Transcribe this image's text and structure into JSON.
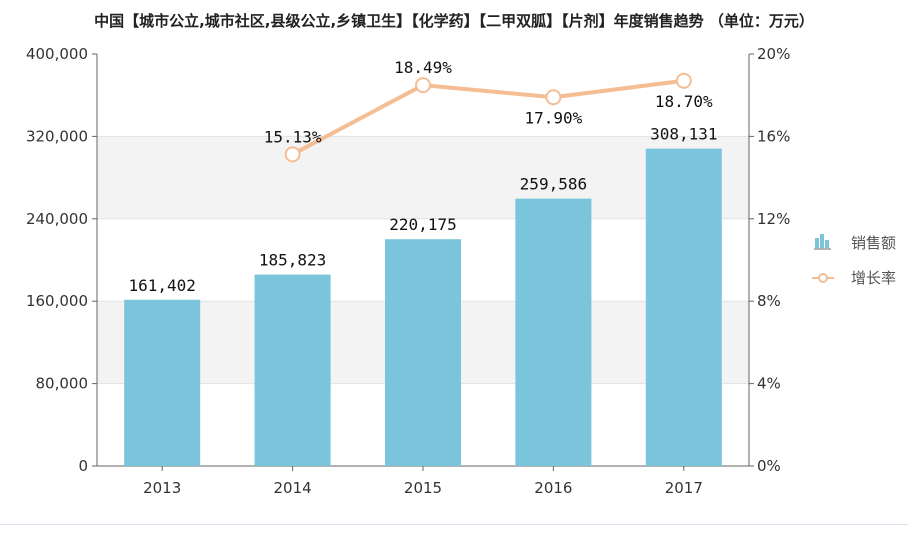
{
  "title": "中国【城市公立,城市社区,县级公立,乡镇卫生】【化学药】【二甲双胍】【片剂】年度销售趋势 （单位：万元）",
  "chart_data": {
    "type": "bar",
    "categories": [
      "2013",
      "2014",
      "2015",
      "2016",
      "2017"
    ],
    "series": [
      {
        "name": "销售额",
        "type": "bar",
        "axis": "left",
        "values": [
          161402,
          185823,
          220175,
          259586,
          308131
        ],
        "labels": [
          "161,402",
          "185,823",
          "220,175",
          "259,586",
          "308,131"
        ],
        "color": "#7ac4dc"
      },
      {
        "name": "增长率",
        "type": "line",
        "axis": "right",
        "values": [
          null,
          15.13,
          18.49,
          17.9,
          18.7
        ],
        "labels": [
          "",
          "15.13%",
          "18.49%",
          "17.90%",
          "18.70%"
        ],
        "color": "#f5bd93"
      }
    ],
    "y_left": {
      "ylim": [
        0,
        400000
      ],
      "ticks": [
        0,
        80000,
        160000,
        240000,
        320000,
        400000
      ],
      "tick_labels": [
        "0",
        "80,000",
        "160,000",
        "240,000",
        "320,000",
        "400,000"
      ]
    },
    "y_right": {
      "ylim": [
        0,
        20
      ],
      "ticks": [
        0,
        4,
        8,
        12,
        16,
        20
      ],
      "tick_labels": [
        "0%",
        "4%",
        "8%",
        "12%",
        "16%",
        "20%"
      ]
    },
    "legend_position": "right",
    "grid": "alternating horizontal bands"
  }
}
